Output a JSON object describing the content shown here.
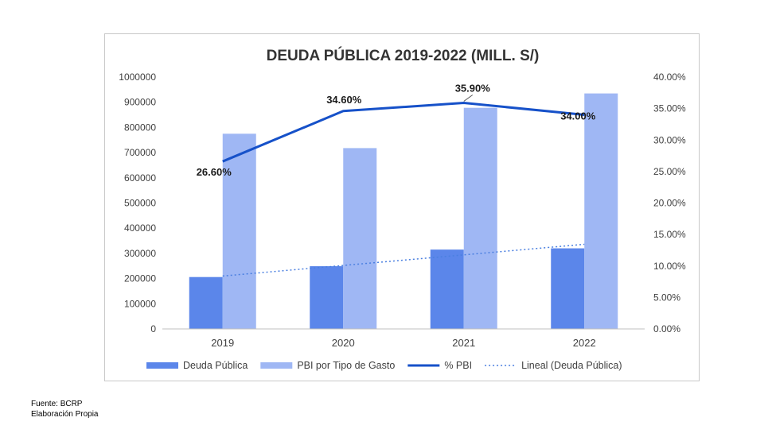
{
  "chart_data": {
    "type": "bar",
    "title": "DEUDA PÚBLICA 2019-2022 (MILL. S/)",
    "categories": [
      "2019",
      "2020",
      "2021",
      "2022"
    ],
    "series": [
      {
        "name": "Deuda Pública",
        "type": "bar",
        "axis": "left",
        "color": "#5b86ea",
        "values": [
          206000,
          249000,
          315000,
          320000
        ]
      },
      {
        "name": "PBI por Tipo de Gasto",
        "type": "bar",
        "axis": "left",
        "color": "#9fb7f4",
        "values": [
          775000,
          718000,
          878000,
          935000
        ]
      },
      {
        "name": "% PBI",
        "type": "line",
        "axis": "right",
        "color": "#1651c9",
        "values": [
          26.6,
          34.6,
          35.9,
          34.0
        ],
        "labels": [
          "26.60%",
          "34.60%",
          "35.90%",
          "34.00%"
        ]
      },
      {
        "name": "Lineal (Deuda Pública)",
        "type": "trendline",
        "axis": "left",
        "color": "#4a7fe0",
        "values": [
          210000,
          252000,
          294000,
          336000
        ]
      }
    ],
    "y_left": {
      "ylim": [
        0,
        1000000
      ],
      "ticks": [
        "0",
        "100000",
        "200000",
        "300000",
        "400000",
        "500000",
        "600000",
        "700000",
        "800000",
        "900000",
        "1000000"
      ]
    },
    "y_right": {
      "ylim": [
        0,
        40
      ],
      "ticks": [
        "0.00%",
        "5.00%",
        "10.00%",
        "15.00%",
        "20.00%",
        "25.00%",
        "30.00%",
        "35.00%",
        "40.00%"
      ]
    },
    "grid": false,
    "legend_position": "bottom"
  },
  "source": {
    "line1": "Fuente: BCRP",
    "line2": "Elaboración Propia"
  }
}
